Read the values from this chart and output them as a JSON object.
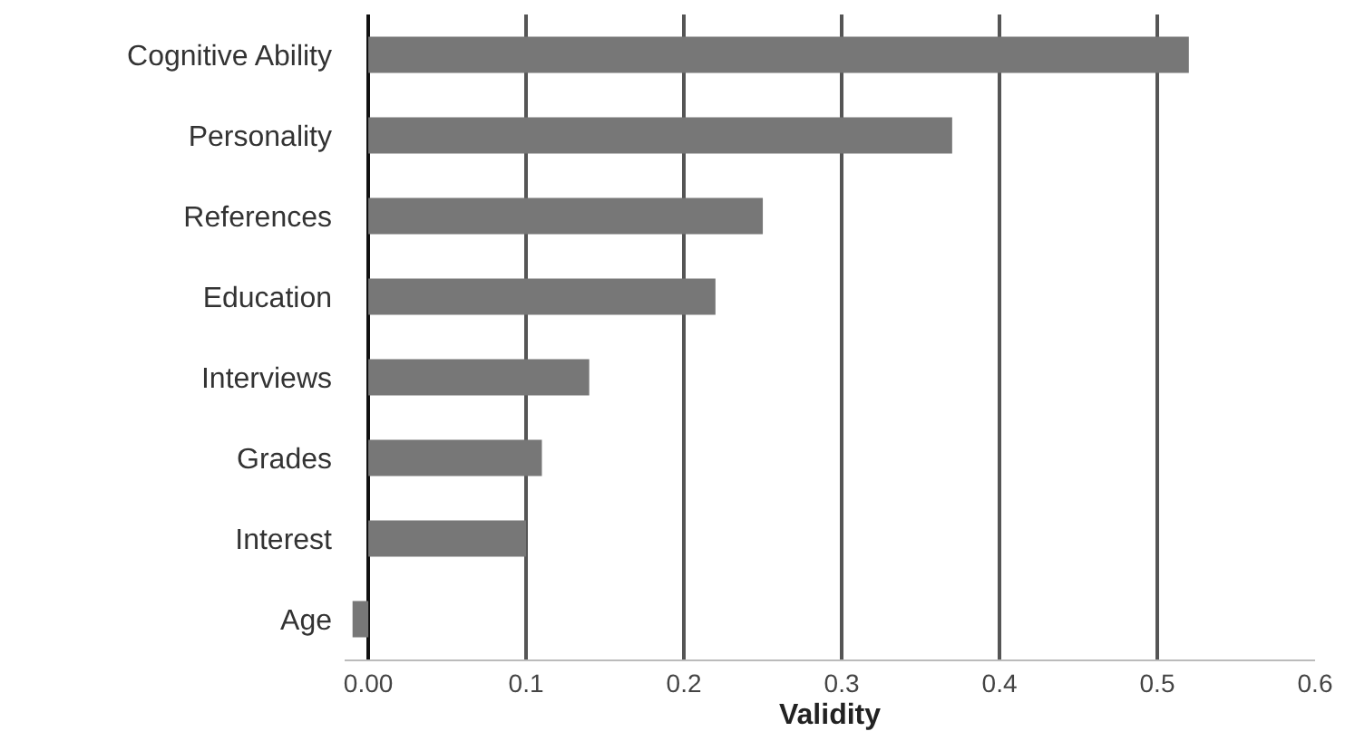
{
  "chart_data": {
    "type": "bar",
    "orientation": "horizontal",
    "xlabel": "Validity",
    "categories": [
      "Cognitive Ability",
      "Personality",
      "References",
      "Education",
      "Interviews",
      "Grades",
      "Interest",
      "Age"
    ],
    "values": [
      0.52,
      0.37,
      0.25,
      0.22,
      0.14,
      0.11,
      0.1,
      -0.01
    ],
    "color": "#777777",
    "xlim": [
      -0.015,
      0.6
    ],
    "xticks": [
      {
        "value": 0,
        "label": "0.00"
      },
      0.1,
      0.2,
      0.3,
      0.4,
      0.5,
      0.6
    ],
    "grid": "x"
  }
}
